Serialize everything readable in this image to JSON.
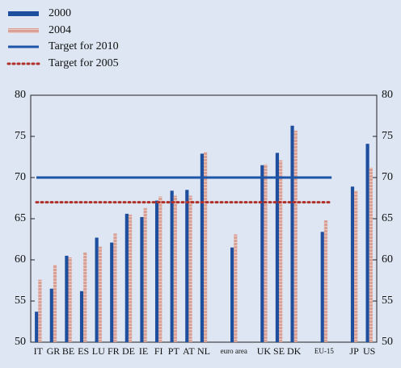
{
  "chart_data": {
    "type": "bar",
    "categories": [
      "IT",
      "GR",
      "BE",
      "ES",
      "LU",
      "FR",
      "DE",
      "IE",
      "FI",
      "PT",
      "AT",
      "NL",
      null,
      "euro area",
      null,
      "UK",
      "SE",
      "DK",
      null,
      "EU-15",
      null,
      "JP",
      "US"
    ],
    "series": [
      {
        "name": "2000",
        "color": "#1d4f9e",
        "values": [
          53.7,
          56.5,
          60.5,
          56.2,
          62.7,
          62.1,
          65.6,
          65.2,
          67.2,
          68.4,
          68.5,
          72.9,
          null,
          61.5,
          null,
          71.5,
          73.0,
          76.3,
          null,
          63.4,
          null,
          68.9,
          74.1
        ]
      },
      {
        "name": "2004",
        "color": "#d9a096",
        "values": [
          57.6,
          59.4,
          60.3,
          60.9,
          61.6,
          63.2,
          65.5,
          66.3,
          67.7,
          67.8,
          67.8,
          73.1,
          null,
          63.1,
          null,
          71.6,
          72.1,
          75.7,
          null,
          64.8,
          null,
          68.4,
          71.2
        ]
      }
    ],
    "targets": [
      {
        "name": "Target for 2010",
        "value": 70,
        "color": "#1d56a8",
        "style": "solid"
      },
      {
        "name": "Target for 2005",
        "value": 67,
        "color": "#b0302a",
        "style": "dotted"
      }
    ],
    "ylim": [
      50,
      80
    ],
    "yticks": [
      50,
      55,
      60,
      65,
      70,
      75,
      80
    ],
    "grid": false
  }
}
